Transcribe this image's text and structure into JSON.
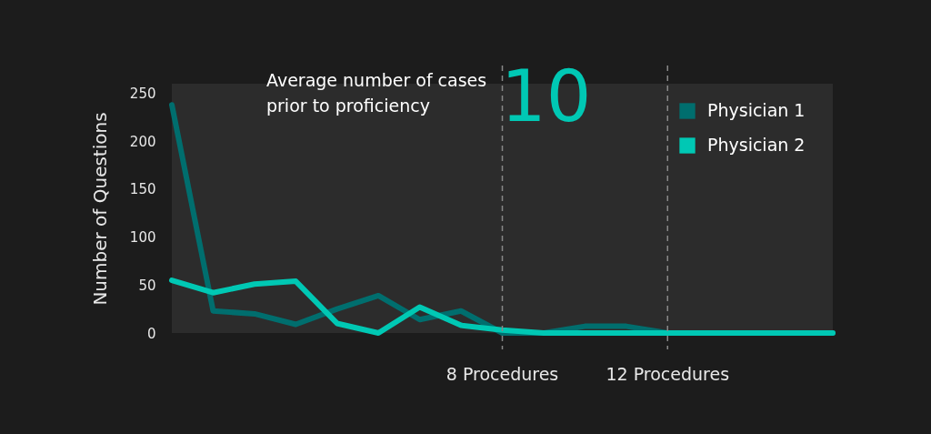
{
  "chart_data": {
    "type": "line",
    "ylabel": "Number of Questions",
    "x": [
      0,
      1,
      2,
      3,
      4,
      5,
      6,
      7,
      8,
      9,
      10,
      11,
      12,
      13,
      14,
      15,
      16
    ],
    "series": [
      {
        "name": "Physician 1",
        "color": "#006e6e",
        "values": [
          238,
          23,
          20,
          9,
          25,
          39,
          14,
          23,
          0,
          0,
          7,
          7,
          0,
          0,
          0,
          0,
          0
        ]
      },
      {
        "name": "Physician 2",
        "color": "#00c8b4",
        "values": [
          55,
          42,
          51,
          54,
          10,
          0,
          27,
          8,
          3,
          0,
          0,
          0,
          0,
          0,
          0,
          0,
          0
        ]
      }
    ],
    "xlim": [
      0,
      16
    ],
    "ylim": [
      0,
      260
    ],
    "yticks": [
      0,
      50,
      100,
      150,
      200,
      250
    ],
    "tick_labels": "y",
    "grid": false,
    "legend": "top right",
    "marker": "none",
    "line_style": "solid",
    "ref_lines": [
      {
        "axis": "x",
        "value": 8,
        "label": "8 Procedures",
        "color": "#888888",
        "line_style": "dashed"
      },
      {
        "axis": "x",
        "value": 12,
        "label": "12 Procedures",
        "color": "#888888",
        "line_style": "dashed"
      }
    ],
    "annotations": [
      "Average number of cases\nprior to proficiency",
      "10"
    ]
  }
}
